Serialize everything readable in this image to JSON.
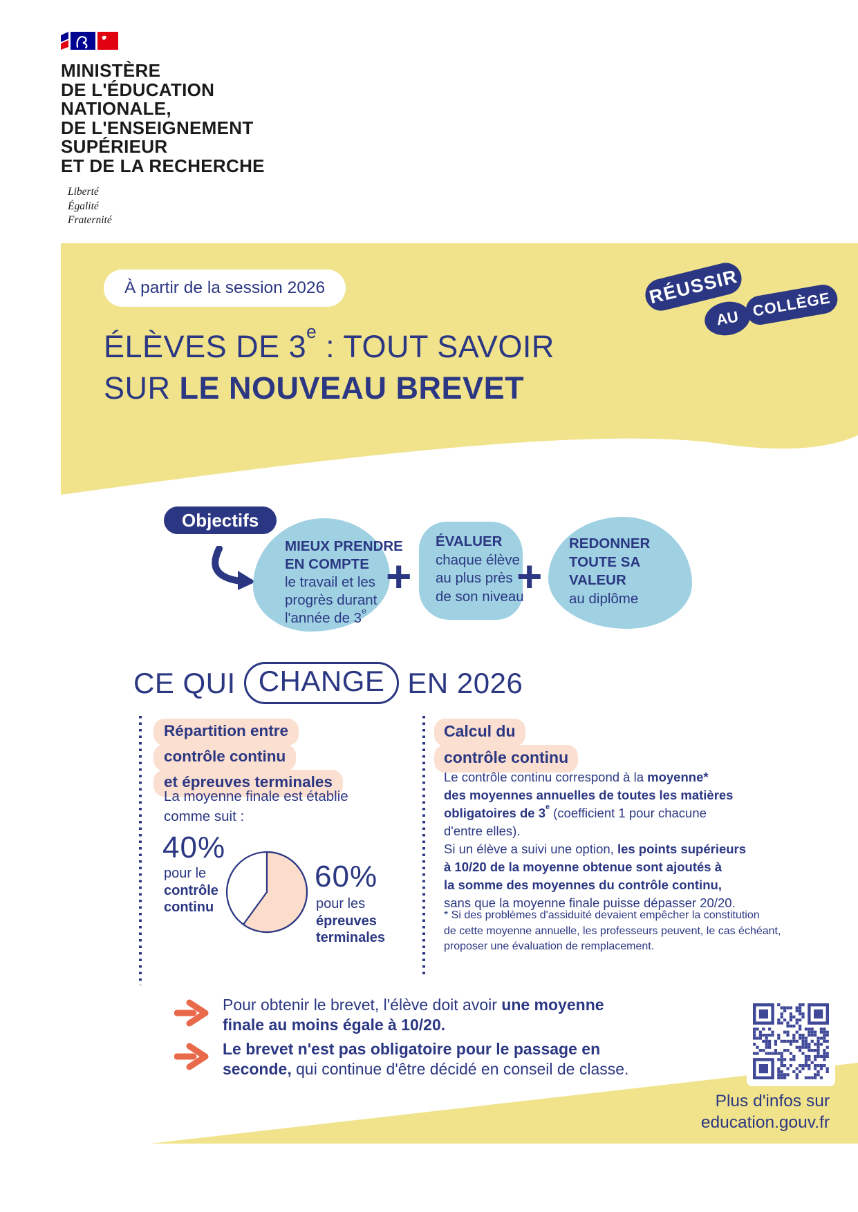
{
  "colors": {
    "navy": "#2b3782",
    "yellow": "#f1e38b",
    "light_blue": "#9fd1e3",
    "peach": "#fbdfd0",
    "pie_peach": "#fcdccb",
    "orange": "#e9694b",
    "qr_blue": "#3f4797",
    "flag_blue": "#000091",
    "flag_red": "#e1000f",
    "ink": "#1a1a1a"
  },
  "logo": {
    "ministry_lines": [
      "MINISTÈRE",
      "DE L'ÉDUCATION",
      "NATIONALE,",
      "DE L'ENSEIGNEMENT",
      "SUPÉRIEUR",
      "ET DE LA RECHERCHE"
    ],
    "motto": [
      "Liberté",
      "Égalité",
      "Fraternité"
    ]
  },
  "header": {
    "session_badge": "À partir de la session 2026",
    "title_line1": [
      {
        "t": "ÉLÈVES DE 3"
      },
      {
        "t": "e",
        "sup": true
      },
      {
        "t": " : TOUT SAVOIR"
      }
    ],
    "title_line2": [
      {
        "t": "SUR "
      },
      {
        "t": "LE NOUVEAU BREVET",
        "b": true
      }
    ],
    "corner_badge": [
      "RÉUSSIR",
      "AU",
      "COLLÈGE"
    ]
  },
  "objectives": {
    "label": "Objectifs",
    "plus": "+",
    "blobs": [
      {
        "title_lines": [
          "MIEUX PRENDRE",
          "EN COMPTE"
        ],
        "body": [
          {
            "t": "le travail et les"
          },
          {
            "br": true
          },
          {
            "t": "progrès durant"
          },
          {
            "br": true
          },
          {
            "t": "l'année de 3"
          },
          {
            "t": "e",
            "sup": true
          }
        ]
      },
      {
        "title_lines": [
          "ÉVALUER"
        ],
        "body": [
          {
            "t": "chaque élève"
          },
          {
            "br": true
          },
          {
            "t": "au plus près"
          },
          {
            "br": true
          },
          {
            "t": "de son niveau"
          }
        ]
      },
      {
        "title_lines": [
          "REDONNER",
          "TOUTE SA",
          "VALEUR"
        ],
        "body": [
          {
            "t": "au diplôme"
          }
        ]
      }
    ]
  },
  "change_section": {
    "heading_pre": "CE QUI",
    "heading_highlight": "CHANGE",
    "heading_post": "EN 2026"
  },
  "left_column": {
    "heading_lines": [
      "Répartition entre",
      "contrôle continu",
      "et épreuves terminales"
    ],
    "intro": [
      {
        "t": "La moyenne finale est établie"
      },
      {
        "br": true
      },
      {
        "t": "comme suit :"
      }
    ],
    "chart_data": {
      "type": "pie",
      "slices": [
        {
          "label": "contrôle continu",
          "value": 40
        },
        {
          "label": "épreuves terminales",
          "value": 60
        }
      ]
    },
    "slice_cc": {
      "pct": "40%",
      "sub": [
        {
          "t": "pour le"
        },
        {
          "br": true
        },
        {
          "t": "contrôle",
          "b": true
        },
        {
          "br": true
        },
        {
          "t": "continu",
          "b": true
        }
      ]
    },
    "slice_et": {
      "pct": "60%",
      "sub": [
        {
          "t": "pour les"
        },
        {
          "br": true
        },
        {
          "t": "épreuves",
          "b": true
        },
        {
          "br": true
        },
        {
          "t": "terminales",
          "b": true
        }
      ]
    }
  },
  "right_column": {
    "heading_lines": [
      "Calcul du",
      "contrôle continu"
    ],
    "para1": [
      {
        "t": "Le contrôle continu correspond à la "
      },
      {
        "t": "moyenne*",
        "b": true
      },
      {
        "br": true
      },
      {
        "t": "des moyennes annuelles de toutes les matières",
        "b": true
      },
      {
        "br": true
      },
      {
        "t": "obligatoires de 3",
        "b": true
      },
      {
        "t": "e",
        "b": true,
        "sup": true
      },
      {
        "t": " (coefficient 1 pour chacune"
      },
      {
        "br": true
      },
      {
        "t": "d'entre elles)."
      }
    ],
    "para2": [
      {
        "t": "Si un élève a suivi une option, "
      },
      {
        "t": "les points supérieurs",
        "b": true
      },
      {
        "br": true
      },
      {
        "t": "à 10/20 de la moyenne obtenue sont ajoutés à",
        "b": true
      },
      {
        "br": true
      },
      {
        "t": "la somme des moyennes du contrôle continu,",
        "b": true
      },
      {
        "br": true
      },
      {
        "t": "sans que la moyenne finale puisse dépasser 20/20."
      }
    ],
    "footnote": [
      {
        "t": "* Si des problèmes d'assiduité devaient empêcher la constitution"
      },
      {
        "br": true
      },
      {
        "t": "de cette moyenne annuelle, les professeurs peuvent, le cas échéant,"
      },
      {
        "br": true
      },
      {
        "t": "proposer une évaluation de remplacement."
      }
    ]
  },
  "footer": {
    "items": [
      [
        {
          "t": "Pour obtenir le brevet, l'élève doit avoir "
        },
        {
          "t": "une moyenne",
          "b": true
        },
        {
          "br": true
        },
        {
          "t": "finale au moins égale à 10/20.",
          "b": true
        }
      ],
      [
        {
          "t": "Le brevet n'est pas obligatoire pour le passage en",
          "b": true
        },
        {
          "br": true
        },
        {
          "t": "seconde,",
          "b": true
        },
        {
          "t": " qui continue d'être décidé en conseil de classe."
        }
      ]
    ],
    "more_info": [
      "Plus d'infos sur",
      "education.gouv.fr"
    ]
  }
}
